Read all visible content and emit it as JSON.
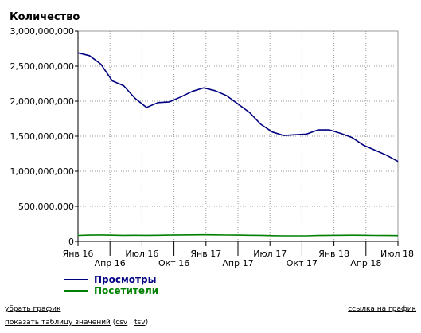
{
  "chart_data": {
    "type": "line",
    "title": "Количество",
    "ylim": [
      0,
      3000000000
    ],
    "y_ticks": [
      0,
      500000000,
      1000000000,
      1500000000,
      2000000000,
      2500000000,
      3000000000
    ],
    "y_tick_labels": [
      "0",
      "500,000,000",
      "1,000,000,000",
      "1,500,000,000",
      "2,000,000,000",
      "2,500,000,000",
      "3,000,000,000"
    ],
    "x_ticks": [
      {
        "label": "Янв 16",
        "index": 0
      },
      {
        "label": "Апр 16",
        "index": 3
      },
      {
        "label": "Июл 16",
        "index": 6
      },
      {
        "label": "Окт 16",
        "index": 9
      },
      {
        "label": "Янв 17",
        "index": 12
      },
      {
        "label": "Апр 17",
        "index": 15
      },
      {
        "label": "Июл 17",
        "index": 18
      },
      {
        "label": "Окт 17",
        "index": 21
      },
      {
        "label": "Янв 18",
        "index": 24
      },
      {
        "label": "Апр 18",
        "index": 27
      },
      {
        "label": "Июл 18",
        "index": 30
      }
    ],
    "grid": true,
    "legend_position": "bottom-left",
    "series": [
      {
        "name": "Просмотры",
        "color": "#000080",
        "values": [
          2690000000,
          2650000000,
          2530000000,
          2290000000,
          2220000000,
          2040000000,
          1910000000,
          1980000000,
          1990000000,
          2060000000,
          2140000000,
          2190000000,
          2150000000,
          2080000000,
          1960000000,
          1840000000,
          1670000000,
          1560000000,
          1510000000,
          1520000000,
          1530000000,
          1590000000,
          1590000000,
          1540000000,
          1480000000,
          1370000000,
          1300000000,
          1230000000,
          1140000000
        ]
      },
      {
        "name": "Посетители",
        "color": "#008000",
        "values": [
          85000000,
          90000000,
          92000000,
          89000000,
          86000000,
          87000000,
          86000000,
          88000000,
          90000000,
          92000000,
          93000000,
          94000000,
          93000000,
          91000000,
          90000000,
          88000000,
          86000000,
          82000000,
          80000000,
          79000000,
          80000000,
          84000000,
          86000000,
          88000000,
          89000000,
          87000000,
          85000000,
          84000000,
          83000000
        ]
      }
    ]
  },
  "footer": {
    "hide_chart": "убрать график",
    "show_table": "показать таблицу значений",
    "csv": "csv",
    "tsv": "tsv",
    "chart_link": "ссылка на график"
  }
}
